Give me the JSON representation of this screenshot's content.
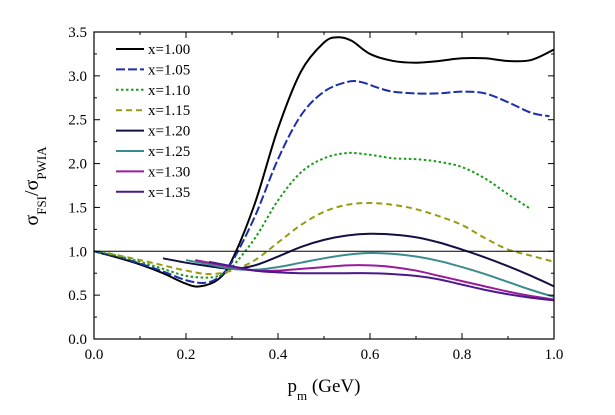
{
  "chart_data": {
    "type": "line",
    "title": "",
    "xlabel": "p",
    "xlabel_sub": "m",
    "xlabel_unit": " (GeV)",
    "ylabel_sigma": "σ",
    "ylabel_sub_num": "FSI",
    "ylabel_slash": "/",
    "ylabel_sub_den": "PWIA",
    "xlim": [
      0,
      1
    ],
    "ylim": [
      0,
      3.5
    ],
    "xticks": [
      0.0,
      0.2,
      0.4,
      0.6,
      0.8,
      1.0
    ],
    "xtick_labels": [
      "0.0",
      "0.2",
      "0.4",
      "0.6",
      "0.8",
      "1.0"
    ],
    "yticks": [
      0.0,
      0.5,
      1.0,
      1.5,
      2.0,
      2.5,
      3.0,
      3.5
    ],
    "ytick_labels": [
      "0.0",
      "0.5",
      "1.0",
      "1.5",
      "2.0",
      "2.5",
      "3.0",
      "3.5"
    ],
    "grid": false,
    "legend_position": "top-left",
    "reference_line": {
      "y": 1.0,
      "color": "#000000"
    },
    "series": [
      {
        "name": "x=1.00",
        "color": "#000000",
        "dash": "solid",
        "x": [
          0.0,
          0.05,
          0.1,
          0.15,
          0.2,
          0.23,
          0.27,
          0.3,
          0.35,
          0.4,
          0.45,
          0.5,
          0.53,
          0.56,
          0.6,
          0.65,
          0.7,
          0.75,
          0.8,
          0.85,
          0.9,
          0.95,
          1.0
        ],
        "y": [
          1.0,
          0.93,
          0.85,
          0.75,
          0.63,
          0.6,
          0.68,
          0.9,
          1.55,
          2.4,
          3.05,
          3.38,
          3.44,
          3.4,
          3.25,
          3.17,
          3.15,
          3.17,
          3.2,
          3.2,
          3.17,
          3.18,
          3.3
        ]
      },
      {
        "name": "x=1.05",
        "color": "#1a2faa",
        "dash": "long-dash",
        "x": [
          0.0,
          0.05,
          0.1,
          0.15,
          0.2,
          0.24,
          0.27,
          0.3,
          0.35,
          0.4,
          0.45,
          0.5,
          0.55,
          0.58,
          0.62,
          0.65,
          0.7,
          0.75,
          0.8,
          0.85,
          0.9,
          0.95,
          0.99
        ],
        "y": [
          1.0,
          0.94,
          0.86,
          0.77,
          0.67,
          0.64,
          0.7,
          0.88,
          1.4,
          2.05,
          2.55,
          2.82,
          2.93,
          2.93,
          2.86,
          2.82,
          2.8,
          2.8,
          2.82,
          2.8,
          2.7,
          2.58,
          2.54
        ]
      },
      {
        "name": "x=1.10",
        "color": "#1a9a1a",
        "dash": "dot",
        "x": [
          0.0,
          0.05,
          0.1,
          0.15,
          0.2,
          0.25,
          0.28,
          0.3,
          0.35,
          0.4,
          0.45,
          0.5,
          0.55,
          0.6,
          0.65,
          0.7,
          0.75,
          0.8,
          0.85,
          0.9,
          0.95
        ],
        "y": [
          1.0,
          0.95,
          0.88,
          0.8,
          0.72,
          0.7,
          0.74,
          0.82,
          1.15,
          1.58,
          1.9,
          2.06,
          2.12,
          2.1,
          2.06,
          2.05,
          2.02,
          1.96,
          1.83,
          1.65,
          1.48
        ]
      },
      {
        "name": "x=1.15",
        "color": "#9a9a12",
        "dash": "dash",
        "x": [
          0.03,
          0.1,
          0.15,
          0.2,
          0.25,
          0.3,
          0.35,
          0.4,
          0.45,
          0.5,
          0.55,
          0.6,
          0.65,
          0.7,
          0.75,
          0.8,
          0.85,
          0.9,
          0.95,
          1.0
        ],
        "y": [
          0.98,
          0.9,
          0.84,
          0.78,
          0.74,
          0.78,
          0.9,
          1.1,
          1.3,
          1.45,
          1.53,
          1.55,
          1.53,
          1.48,
          1.4,
          1.3,
          1.15,
          1.02,
          0.95,
          0.88
        ]
      },
      {
        "name": "x=1.20",
        "color": "#111144",
        "dash": "solid",
        "x": [
          0.15,
          0.2,
          0.25,
          0.3,
          0.35,
          0.4,
          0.45,
          0.5,
          0.55,
          0.6,
          0.65,
          0.7,
          0.75,
          0.8,
          0.85,
          0.9,
          0.95,
          1.0
        ],
        "y": [
          0.92,
          0.87,
          0.83,
          0.8,
          0.84,
          0.94,
          1.05,
          1.13,
          1.18,
          1.2,
          1.19,
          1.16,
          1.1,
          1.02,
          0.93,
          0.83,
          0.72,
          0.6
        ]
      },
      {
        "name": "x=1.25",
        "color": "#3b8a8e",
        "dash": "solid",
        "x": [
          0.2,
          0.25,
          0.3,
          0.35,
          0.4,
          0.45,
          0.5,
          0.55,
          0.6,
          0.65,
          0.7,
          0.75,
          0.8,
          0.85,
          0.9,
          0.95,
          1.0
        ],
        "y": [
          0.9,
          0.85,
          0.8,
          0.79,
          0.82,
          0.87,
          0.92,
          0.96,
          0.98,
          0.97,
          0.94,
          0.89,
          0.82,
          0.74,
          0.65,
          0.56,
          0.48
        ]
      },
      {
        "name": "x=1.30",
        "color": "#9a1a9a",
        "dash": "solid",
        "x": [
          0.22,
          0.25,
          0.3,
          0.35,
          0.4,
          0.45,
          0.5,
          0.55,
          0.6,
          0.65,
          0.7,
          0.75,
          0.8,
          0.85,
          0.9,
          0.95,
          1.0
        ],
        "y": [
          0.9,
          0.87,
          0.82,
          0.78,
          0.78,
          0.8,
          0.82,
          0.84,
          0.84,
          0.82,
          0.78,
          0.72,
          0.66,
          0.6,
          0.54,
          0.49,
          0.45
        ]
      },
      {
        "name": "x=1.35",
        "color": "#4a1a8a",
        "dash": "solid",
        "x": [
          0.25,
          0.3,
          0.35,
          0.4,
          0.45,
          0.5,
          0.55,
          0.6,
          0.65,
          0.7,
          0.75,
          0.8,
          0.85,
          0.9,
          0.95,
          1.0
        ],
        "y": [
          0.88,
          0.83,
          0.78,
          0.76,
          0.75,
          0.75,
          0.75,
          0.75,
          0.74,
          0.72,
          0.68,
          0.62,
          0.56,
          0.51,
          0.47,
          0.44
        ]
      }
    ]
  }
}
